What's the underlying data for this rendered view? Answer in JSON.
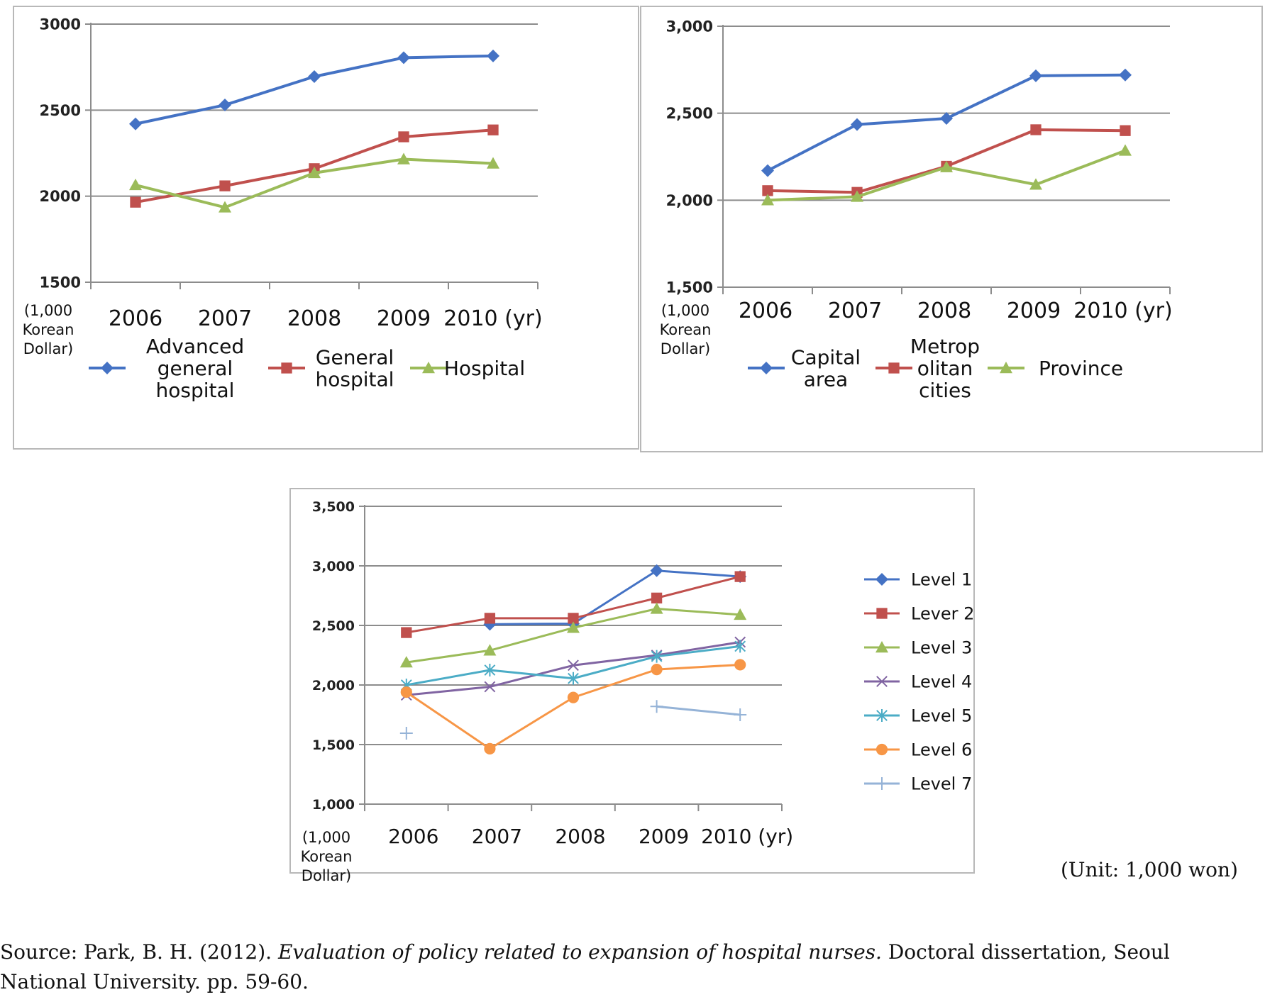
{
  "chart_data": [
    {
      "type": "line",
      "id": "chart1",
      "categories": [
        "2006",
        "2007",
        "2008",
        "2009",
        "2010 (yr)"
      ],
      "ylim": [
        1500,
        3000
      ],
      "yticks": [
        1500,
        2000,
        2500,
        3000
      ],
      "ytick_labels": [
        "1500",
        "2000",
        "2500",
        "3000"
      ],
      "yunit": [
        "(1,000",
        "Korean",
        "Dollar)"
      ],
      "series": [
        {
          "name": [
            "Advanced",
            "general",
            "hospital"
          ],
          "color": "#4472C4",
          "marker": "diamond",
          "values": [
            2420,
            2530,
            2695,
            2805,
            2815
          ]
        },
        {
          "name": [
            "General",
            "hospital"
          ],
          "color": "#C0504D",
          "marker": "square",
          "values": [
            1965,
            2060,
            2160,
            2345,
            2385
          ]
        },
        {
          "name": [
            "Hospital"
          ],
          "color": "#9BBB59",
          "marker": "triangle",
          "values": [
            2065,
            1935,
            2135,
            2215,
            2190
          ]
        }
      ]
    },
    {
      "type": "line",
      "id": "chart2",
      "categories": [
        "2006",
        "2007",
        "2008",
        "2009",
        "2010 (yr)"
      ],
      "ylim": [
        1500,
        3000
      ],
      "yticks": [
        1500,
        2000,
        2500,
        3000
      ],
      "ytick_labels": [
        "1,500",
        "2,000",
        "2,500",
        "3,000"
      ],
      "yunit": [
        "(1,000",
        "Korean",
        "Dollar)"
      ],
      "series": [
        {
          "name": [
            "Capital",
            "area"
          ],
          "color": "#4472C4",
          "marker": "diamond",
          "values": [
            2170,
            2435,
            2470,
            2715,
            2720
          ]
        },
        {
          "name": [
            "Metrop",
            "olitan",
            "cities"
          ],
          "color": "#C0504D",
          "marker": "square",
          "values": [
            2055,
            2045,
            2195,
            2405,
            2400
          ]
        },
        {
          "name": [
            "Province"
          ],
          "color": "#9BBB59",
          "marker": "triangle",
          "values": [
            2000,
            2020,
            2190,
            2090,
            2285
          ]
        }
      ]
    },
    {
      "type": "line",
      "id": "chart3",
      "categories": [
        "2006",
        "2007",
        "2008",
        "2009",
        "2010 (yr)"
      ],
      "ylim": [
        1000,
        3500
      ],
      "yticks": [
        1000,
        1500,
        2000,
        2500,
        3000,
        3500
      ],
      "ytick_labels": [
        "1,000",
        "1,500",
        "2,000",
        "2,500",
        "3,000",
        "3,500"
      ],
      "yunit": [
        "(1,000",
        "Korean",
        "Dollar)"
      ],
      "series": [
        {
          "name": [
            "Level 1"
          ],
          "color": "#4472C4",
          "marker": "diamond",
          "values": [
            null,
            2510,
            2515,
            2960,
            2910
          ]
        },
        {
          "name": [
            "Lever 2"
          ],
          "color": "#C0504D",
          "marker": "square",
          "values": [
            2440,
            2560,
            2560,
            2730,
            2910
          ]
        },
        {
          "name": [
            "Level 3"
          ],
          "color": "#9BBB59",
          "marker": "triangle",
          "values": [
            2190,
            2290,
            2480,
            2640,
            2590
          ]
        },
        {
          "name": [
            "Level 4"
          ],
          "color": "#8064A2",
          "marker": "x",
          "values": [
            1915,
            1985,
            2165,
            2250,
            2360
          ]
        },
        {
          "name": [
            "Level 5"
          ],
          "color": "#4BACC6",
          "marker": "star",
          "values": [
            2000,
            2125,
            2055,
            2240,
            2325
          ]
        },
        {
          "name": [
            "Level 6"
          ],
          "color": "#F79646",
          "marker": "circle",
          "values": [
            1940,
            1465,
            1895,
            2130,
            2170
          ]
        },
        {
          "name": [
            "Level 7"
          ],
          "color": "#95B3D7",
          "marker": "plus",
          "values": [
            1595,
            null,
            null,
            1820,
            1750
          ]
        }
      ]
    }
  ],
  "unit_note": "(Unit: 1,000 won)",
  "source": {
    "prefix": "Source: Park, B. H. (2012). ",
    "title": "Evaluation of policy related to expansion of hospital nurses.",
    "suffix": " Doctoral dissertation, Seoul National University. pp. 59-60."
  }
}
